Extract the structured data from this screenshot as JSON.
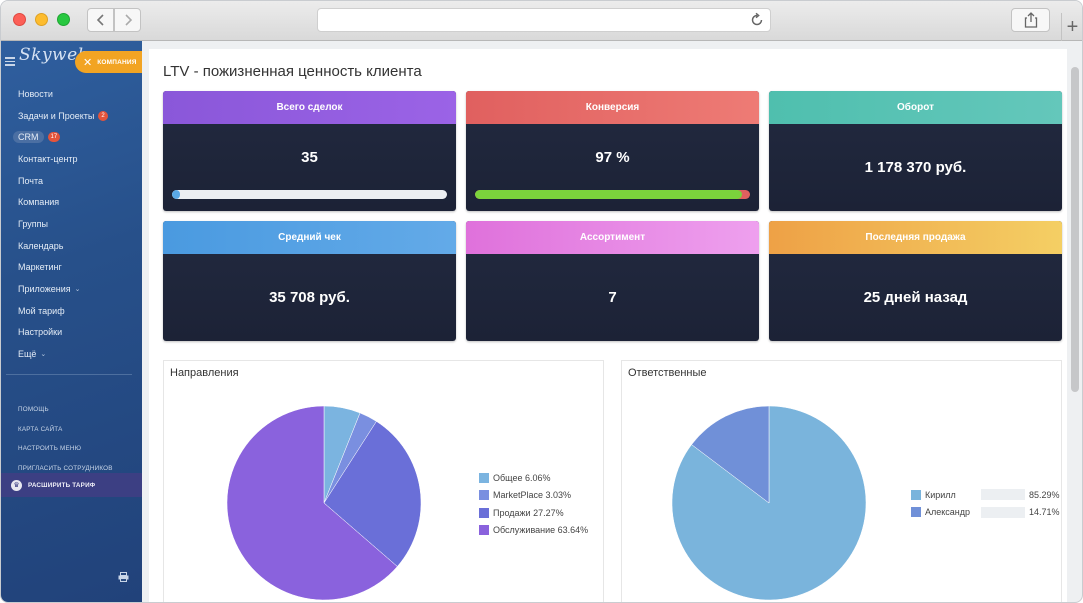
{
  "browser": {
    "back_icon": "chevron-left-icon",
    "forward_icon": "chevron-right-icon",
    "reload_icon": "reload-icon",
    "share_icon": "share-icon",
    "new_tab": "+"
  },
  "sidebar": {
    "logo": "Skyweb",
    "company_label": "КОМПАНИЯ",
    "items": [
      {
        "label": "Новости"
      },
      {
        "label": "Задачи и Проекты",
        "badge": "2"
      },
      {
        "label": "CRM",
        "badge": "17",
        "active": true
      },
      {
        "label": "Контакт-центр"
      },
      {
        "label": "Почта"
      },
      {
        "label": "Компания"
      },
      {
        "label": "Группы"
      },
      {
        "label": "Календарь"
      },
      {
        "label": "Маркетинг"
      },
      {
        "label": "Приложения",
        "caret": "⌄"
      },
      {
        "label": "Мой тариф"
      },
      {
        "label": "Настройки"
      },
      {
        "label": "Ещё",
        "caret": "⌄"
      }
    ],
    "small_items": [
      {
        "label": "ПОМОЩЬ"
      },
      {
        "label": "КАРТА САЙТА"
      },
      {
        "label": "НАСТРОИТЬ МЕНЮ"
      },
      {
        "label": "ПРИГЛАСИТЬ СОТРУДНИКОВ"
      }
    ],
    "upgrade_label": "РАСШИРИТЬ ТАРИФ"
  },
  "page": {
    "title": "LTV - пожизненная ценность клиента"
  },
  "cards": [
    {
      "title": "Всего сделок",
      "value": "35",
      "color_from": "#8a57d9",
      "color_to": "#9b63e6",
      "progress": 0.03,
      "progress_color": "#5aa8e6"
    },
    {
      "title": "Конверсия",
      "value": "97 %",
      "color_from": "#e0605f",
      "color_to": "#ee7b75",
      "progress": 0.97,
      "progress_color": "#7bd33c"
    },
    {
      "title": "Оборот",
      "value": "1 178 370  руб.",
      "color_from": "#4fbfae",
      "color_to": "#64c7bb"
    },
    {
      "title": "Средний чек",
      "value": "35 708  руб.",
      "color_from": "#4a9ae0",
      "color_to": "#63aae8"
    },
    {
      "title": "Ассортимент",
      "value": "7",
      "color_from": "#df71db",
      "color_to": "#eea0ee"
    },
    {
      "title": "Последняя продажа",
      "value": "25 дней назад",
      "color_from": "#eea146",
      "color_to": "#f4cf64"
    }
  ],
  "chart_data": [
    {
      "type": "pie",
      "title": "Направления",
      "categories": [
        "Общее",
        "MarketPlace",
        "Продажи",
        "Обслуживание"
      ],
      "values": [
        6.06,
        3.03,
        27.27,
        63.64
      ],
      "legend_labels": [
        "Общее 6.06%",
        "MarketPlace 3.03%",
        "Продажи 27.27%",
        "Обслуживание 63.64%"
      ],
      "colors": [
        "#7bb4e0",
        "#7a8fe0",
        "#6a6fd8",
        "#8a62dd"
      ],
      "legend": "right"
    },
    {
      "type": "pie",
      "title": "Ответственные",
      "categories": [
        "Кирилл",
        "Александр"
      ],
      "values": [
        85.29,
        14.71
      ],
      "legend_names": [
        "Кирилл",
        "Александр"
      ],
      "legend_values": [
        "85.29%",
        "14.71%"
      ],
      "colors": [
        "#7ab4dc",
        "#7090d8"
      ],
      "legend": "right"
    }
  ]
}
